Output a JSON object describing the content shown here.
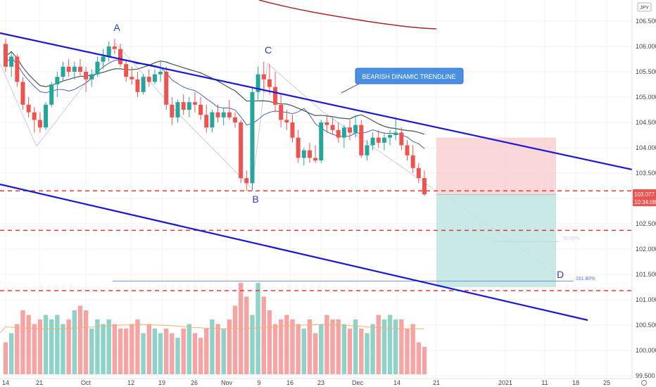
{
  "chart_data": {
    "type": "candlestick",
    "symbol_currency": "JPY",
    "y_ticks": [
      106.5,
      106.0,
      105.5,
      105.0,
      104.5,
      104.0,
      103.5,
      103.0,
      102.5,
      102.0,
      101.5,
      101.0,
      100.5,
      100.0,
      99.5
    ],
    "y_tick_labels": [
      "106.500",
      "106.000",
      "105.500",
      "105.000",
      "104.500",
      "104.000",
      "103.500",
      "103.000",
      "102.500",
      "102.000",
      "101.500",
      "101.000",
      "100.500",
      "100.000",
      "99.500"
    ],
    "x_labels": [
      "14",
      "21",
      "Oct",
      "12",
      "19",
      "26",
      "Nov",
      "9",
      "16",
      "23",
      "Dec",
      "14",
      "21",
      "2021",
      "11",
      "18",
      "25"
    ],
    "current_price": "103.077",
    "countdown": "10:34:08",
    "candles": [
      [
        106.05,
        106.15,
        105.5,
        105.6
      ],
      [
        105.6,
        105.9,
        105.4,
        105.8
      ],
      [
        105.8,
        105.85,
        105.2,
        105.3
      ],
      [
        105.3,
        105.4,
        104.75,
        104.85
      ],
      [
        104.85,
        105.0,
        104.6,
        104.7
      ],
      [
        104.7,
        104.8,
        104.3,
        104.55
      ],
      [
        104.55,
        104.7,
        104.3,
        104.4
      ],
      [
        104.4,
        104.9,
        104.35,
        104.85
      ],
      [
        104.85,
        105.3,
        104.8,
        105.25
      ],
      [
        105.25,
        105.5,
        105.0,
        105.4
      ],
      [
        105.4,
        105.7,
        105.3,
        105.6
      ],
      [
        105.6,
        105.75,
        105.4,
        105.5
      ],
      [
        105.5,
        105.7,
        105.35,
        105.6
      ],
      [
        105.6,
        105.75,
        105.4,
        105.5
      ],
      [
        105.5,
        105.6,
        105.1,
        105.35
      ],
      [
        105.35,
        105.55,
        105.2,
        105.45
      ],
      [
        105.45,
        105.8,
        105.4,
        105.7
      ],
      [
        105.7,
        105.95,
        105.55,
        105.8
      ],
      [
        105.8,
        106.1,
        105.7,
        106.0
      ],
      [
        106.0,
        106.15,
        105.85,
        105.95
      ],
      [
        105.95,
        106.05,
        105.6,
        105.65
      ],
      [
        105.65,
        105.75,
        105.3,
        105.4
      ],
      [
        105.4,
        105.6,
        105.25,
        105.35
      ],
      [
        105.35,
        105.5,
        105.0,
        105.1
      ],
      [
        105.1,
        105.45,
        105.05,
        105.4
      ],
      [
        105.4,
        105.55,
        105.2,
        105.3
      ],
      [
        105.3,
        105.55,
        105.25,
        105.45
      ],
      [
        105.45,
        105.7,
        105.3,
        105.5
      ],
      [
        105.5,
        105.6,
        104.75,
        104.85
      ],
      [
        104.85,
        105.0,
        104.45,
        104.6
      ],
      [
        104.6,
        104.95,
        104.5,
        104.9
      ],
      [
        104.9,
        105.05,
        104.65,
        104.75
      ],
      [
        104.75,
        105.0,
        104.6,
        104.9
      ],
      [
        104.9,
        105.1,
        104.7,
        104.85
      ],
      [
        104.85,
        105.0,
        104.55,
        104.65
      ],
      [
        104.65,
        104.85,
        104.3,
        104.4
      ],
      [
        104.4,
        104.75,
        104.3,
        104.7
      ],
      [
        104.7,
        104.85,
        104.5,
        104.6
      ],
      [
        104.6,
        104.8,
        104.45,
        104.7
      ],
      [
        104.7,
        104.95,
        104.55,
        104.6
      ],
      [
        104.6,
        104.7,
        104.4,
        104.5
      ],
      [
        104.5,
        104.55,
        103.3,
        103.4
      ],
      [
        103.4,
        103.55,
        103.15,
        103.3
      ],
      [
        103.3,
        105.2,
        103.15,
        105.1
      ],
      [
        105.1,
        105.6,
        104.95,
        105.45
      ],
      [
        105.45,
        105.7,
        105.1,
        105.35
      ],
      [
        105.35,
        105.65,
        105.05,
        105.2
      ],
      [
        105.2,
        105.5,
        104.7,
        104.85
      ],
      [
        104.85,
        105.05,
        104.4,
        104.55
      ],
      [
        104.55,
        104.75,
        104.35,
        104.5
      ],
      [
        104.5,
        104.65,
        104.1,
        104.2
      ],
      [
        104.2,
        104.35,
        103.7,
        103.8
      ],
      [
        103.8,
        104.0,
        103.65,
        103.95
      ],
      [
        103.95,
        104.1,
        103.7,
        103.8
      ],
      [
        103.8,
        104.05,
        103.7,
        103.75
      ],
      [
        103.75,
        104.55,
        103.7,
        104.5
      ],
      [
        104.5,
        104.65,
        104.3,
        104.45
      ],
      [
        104.45,
        104.6,
        104.25,
        104.35
      ],
      [
        104.35,
        104.5,
        104.1,
        104.2
      ],
      [
        104.2,
        104.45,
        104.0,
        104.4
      ],
      [
        104.4,
        104.55,
        104.15,
        104.3
      ],
      [
        104.3,
        104.65,
        104.2,
        104.45
      ],
      [
        104.45,
        104.55,
        103.8,
        103.85
      ],
      [
        103.85,
        104.15,
        103.75,
        104.05
      ],
      [
        104.05,
        104.3,
        103.95,
        104.2
      ],
      [
        104.2,
        104.35,
        104.0,
        104.1
      ],
      [
        104.1,
        104.3,
        103.95,
        104.2
      ],
      [
        104.2,
        104.35,
        104.05,
        104.25
      ],
      [
        104.25,
        104.6,
        104.15,
        104.3
      ],
      [
        104.3,
        104.4,
        103.95,
        104.05
      ],
      [
        104.05,
        104.15,
        103.75,
        103.85
      ],
      [
        103.85,
        104.05,
        103.5,
        103.6
      ],
      [
        103.6,
        103.7,
        103.3,
        103.4
      ],
      [
        103.4,
        103.55,
        103.05,
        103.08
      ]
    ],
    "volumes": [
      0.35,
      0.45,
      0.55,
      0.7,
      0.65,
      0.55,
      0.6,
      0.65,
      0.6,
      0.65,
      0.55,
      0.6,
      0.7,
      0.75,
      0.7,
      0.5,
      0.6,
      0.55,
      0.6,
      0.55,
      0.5,
      0.5,
      0.55,
      0.6,
      0.45,
      0.55,
      0.5,
      0.45,
      0.5,
      0.45,
      0.4,
      0.5,
      0.55,
      0.45,
      0.4,
      0.5,
      0.6,
      0.55,
      0.5,
      0.6,
      0.75,
      1.0,
      0.85,
      0.65,
      1.0,
      0.85,
      0.7,
      0.55,
      0.6,
      0.65,
      0.6,
      0.55,
      0.5,
      0.6,
      0.45,
      0.55,
      0.65,
      0.6,
      0.6,
      0.55,
      0.5,
      0.6,
      0.5,
      0.45,
      0.55,
      0.65,
      0.6,
      0.65,
      0.6,
      0.6,
      0.5,
      0.55,
      0.35,
      0.3
    ],
    "annotations": {
      "A": "A",
      "B": "B",
      "C": "C",
      "D": "D",
      "trendline_callout": "BEARISH DINAMIC TRENDLINE",
      "fib_50": "50.00%",
      "fib_161": "161.80%"
    },
    "levels": {
      "dashed_red": [
        103.15,
        102.37,
        101.18
      ],
      "fib_161_level": 101.37,
      "fib_50_level": 102.15
    },
    "position": {
      "entry": 103.08,
      "stop": 104.2,
      "target": 101.25
    }
  }
}
